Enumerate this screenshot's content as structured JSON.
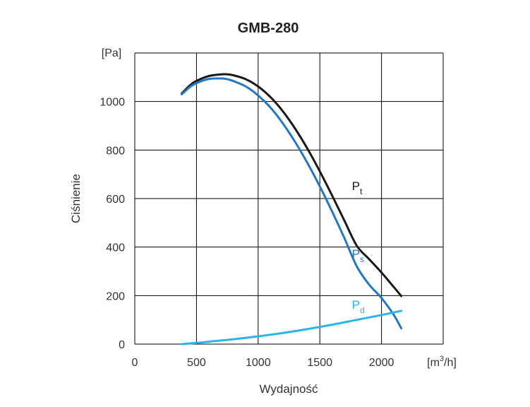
{
  "chart_data": {
    "type": "line",
    "title": "GMB-280",
    "xlabel": "Wydajność",
    "ylabel": "Ciśnienie",
    "x_unit_prefix": "[m",
    "x_unit_sup": "3",
    "x_unit_suffix": "/h]",
    "y_unit": "[Pa]",
    "xlim": [
      0,
      2500
    ],
    "ylim": [
      0,
      1200
    ],
    "xticks": [
      0,
      500,
      1000,
      1500,
      2000
    ],
    "yticks": [
      0,
      200,
      400,
      600,
      800,
      1000
    ],
    "grid": true,
    "colors": {
      "Pt": "#1a1a1a",
      "Ps": "#1f78c1",
      "Pd": "#29b5e8",
      "grid": "#000000"
    },
    "series": [
      {
        "key": "Pt",
        "name": "P",
        "sub": "t",
        "x": [
          380,
          450,
          500,
          600,
          700,
          750,
          800,
          900,
          1000,
          1100,
          1200,
          1300,
          1400,
          1500,
          1600,
          1700,
          1800,
          1900,
          2000,
          2100,
          2160
        ],
        "y": [
          1033,
          1068,
          1085,
          1105,
          1112,
          1112,
          1108,
          1092,
          1062,
          1018,
          960,
          888,
          805,
          712,
          612,
          508,
          405,
          350,
          295,
          235,
          198
        ]
      },
      {
        "key": "Ps",
        "name": "P",
        "sub": "s",
        "x": [
          380,
          450,
          500,
          600,
          700,
          750,
          800,
          900,
          1000,
          1100,
          1200,
          1300,
          1400,
          1500,
          1600,
          1700,
          1800,
          1900,
          2000,
          2100,
          2160
        ],
        "y": [
          1030,
          1061,
          1076,
          1093,
          1095,
          1092,
          1084,
          1062,
          1025,
          975,
          910,
          833,
          746,
          650,
          546,
          436,
          320,
          245,
          190,
          120,
          65
        ]
      },
      {
        "key": "Pd",
        "name": "P",
        "sub": "d",
        "x": [
          380,
          500,
          600,
          800,
          1000,
          1200,
          1400,
          1600,
          1800,
          2000,
          2160
        ],
        "y": [
          0,
          5,
          10,
          20,
          32,
          46,
          62,
          80,
          100,
          120,
          137
        ]
      }
    ],
    "labels": [
      {
        "key": "Pt",
        "x": 1760,
        "y": 635
      },
      {
        "key": "Ps",
        "x": 1760,
        "y": 355
      },
      {
        "key": "Pd",
        "x": 1760,
        "y": 145
      }
    ]
  }
}
